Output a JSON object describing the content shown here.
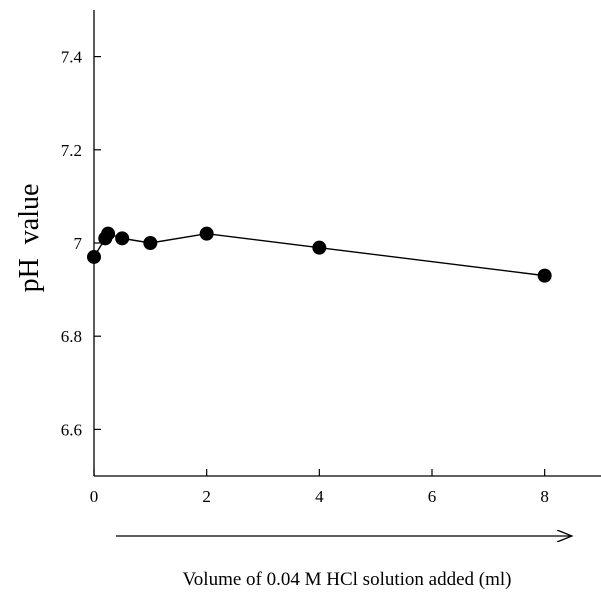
{
  "chart_data": {
    "type": "line",
    "title": "",
    "xlabel": "Volume of 0.04 M HCl solution added (ml)",
    "ylabel": "pH  value",
    "xlim": [
      0,
      9
    ],
    "ylim": [
      6.5,
      7.5
    ],
    "xticks": [
      0,
      2,
      4,
      6,
      8
    ],
    "xtick_labels": [
      "0",
      "2",
      "4",
      "6",
      "8"
    ],
    "yticks": [
      6.6,
      6.8,
      7.0,
      7.2,
      7.4
    ],
    "ytick_labels": [
      "6.6",
      "6.8",
      "7",
      "7.2",
      "7.4"
    ],
    "grid": false,
    "legend": "none",
    "series": [
      {
        "x": [
          0,
          0.2,
          0.25,
          0.5,
          1,
          2,
          4,
          8
        ],
        "y": [
          6.97,
          7.01,
          7.02,
          7.01,
          7.0,
          7.02,
          6.99,
          6.93
        ]
      }
    ],
    "colors": {
      "line": "#000000",
      "marker": "#000000"
    }
  }
}
